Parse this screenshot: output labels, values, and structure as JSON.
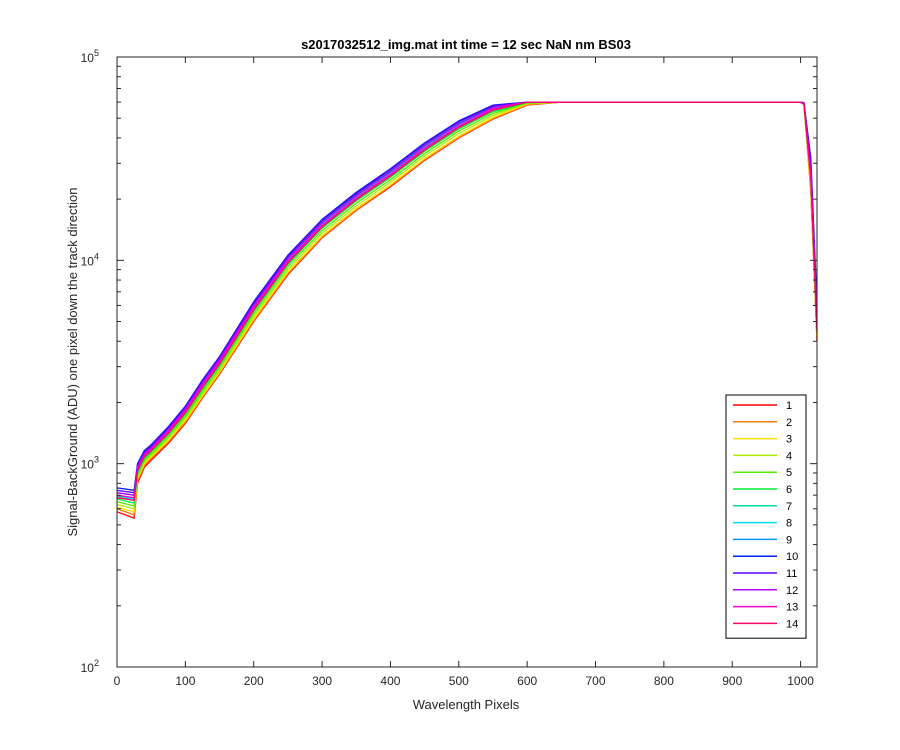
{
  "chart_data": {
    "type": "line",
    "title": "s2017032512_img.mat int time = 12 sec  NaN nm BS03",
    "xlabel": "Wavelength Pixels",
    "ylabel": "Signal-BackGround (ADU) one pixel down the track direction",
    "xlim": [
      0,
      1024
    ],
    "ylim": [
      100,
      100000
    ],
    "yscale": "log",
    "xticks": [
      "0",
      "100",
      "200",
      "300",
      "400",
      "500",
      "600",
      "700",
      "800",
      "900",
      "1000"
    ],
    "yticks": [
      {
        "value": 100,
        "base": "10",
        "exp": "2"
      },
      {
        "value": 1000,
        "base": "10",
        "exp": "3"
      },
      {
        "value": 10000,
        "base": "10",
        "exp": "4"
      },
      {
        "value": 100000,
        "base": "10",
        "exp": "5"
      }
    ],
    "legend_position": "bottom-right",
    "grid": false,
    "x": [
      0,
      25,
      30,
      40,
      50,
      75,
      100,
      125,
      150,
      200,
      250,
      300,
      350,
      400,
      450,
      500,
      550,
      600,
      650,
      700,
      800,
      900,
      1000,
      1005,
      1015,
      1024
    ],
    "series": [
      {
        "name": "1",
        "color": "#ff0000",
        "values": [
          580,
          540,
          800,
          960,
          1040,
          1260,
          1580,
          2100,
          2750,
          5000,
          8500,
          12900,
          17600,
          23000,
          31000,
          40000,
          49500,
          58000,
          60000,
          60000,
          60000,
          60000,
          60000,
          58000,
          22000,
          4000
        ]
      },
      {
        "name": "2",
        "color": "#ff7700",
        "values": [
          600,
          560,
          820,
          980,
          1060,
          1280,
          1600,
          2120,
          2780,
          5050,
          8600,
          13000,
          17700,
          23200,
          31200,
          40200,
          49700,
          58200,
          60000,
          60000,
          60000,
          60000,
          60000,
          58000,
          22000,
          4100
        ]
      },
      {
        "name": "3",
        "color": "#ffdd00",
        "values": [
          610,
          580,
          840,
          1000,
          1080,
          1300,
          1630,
          2150,
          2820,
          5150,
          8750,
          13200,
          18000,
          23500,
          31700,
          40800,
          50400,
          58700,
          60000,
          60000,
          60000,
          60000,
          60000,
          58000,
          23000,
          4200
        ]
      },
      {
        "name": "4",
        "color": "#aaee00",
        "values": [
          630,
          600,
          860,
          1020,
          1100,
          1330,
          1670,
          2200,
          2880,
          5300,
          9000,
          13600,
          18500,
          24200,
          32600,
          42000,
          51500,
          59200,
          60000,
          60000,
          60000,
          60000,
          60000,
          58500,
          24000,
          4300
        ]
      },
      {
        "name": "5",
        "color": "#55ee00",
        "values": [
          650,
          620,
          880,
          1040,
          1120,
          1360,
          1710,
          2260,
          2960,
          5450,
          9300,
          14000,
          19100,
          24900,
          33500,
          43200,
          52700,
          59500,
          60000,
          60000,
          60000,
          60000,
          60000,
          58500,
          25000,
          4500
        ]
      },
      {
        "name": "6",
        "color": "#00ee33",
        "values": [
          670,
          640,
          900,
          1060,
          1140,
          1390,
          1750,
          2320,
          3040,
          5600,
          9550,
          14400,
          19600,
          25600,
          34400,
          44300,
          53800,
          59700,
          60000,
          60000,
          60000,
          60000,
          60000,
          59000,
          26000,
          4600
        ]
      },
      {
        "name": "7",
        "color": "#00ddaa",
        "values": [
          690,
          660,
          920,
          1080,
          1160,
          1420,
          1790,
          2380,
          3110,
          5750,
          9800,
          14800,
          20100,
          26300,
          35300,
          45400,
          55000,
          60000,
          60000,
          60000,
          60000,
          60000,
          60000,
          59000,
          27000,
          4800
        ]
      },
      {
        "name": "8",
        "color": "#00ddff",
        "values": [
          700,
          670,
          940,
          1100,
          1180,
          1450,
          1830,
          2440,
          3190,
          5900,
          10000,
          15100,
          20600,
          26900,
          36100,
          46400,
          56000,
          60000,
          60000,
          60000,
          60000,
          60000,
          60000,
          59000,
          28000,
          5000
        ]
      },
      {
        "name": "9",
        "color": "#0099ff",
        "values": [
          720,
          700,
          960,
          1120,
          1200,
          1480,
          1870,
          2500,
          3260,
          6050,
          10300,
          15500,
          21100,
          27500,
          36900,
          47400,
          57000,
          60000,
          60000,
          60000,
          60000,
          60000,
          60000,
          59500,
          30000,
          5400
        ]
      },
      {
        "name": "10",
        "color": "#0022ee",
        "values": [
          760,
          740,
          1000,
          1160,
          1240,
          1520,
          1920,
          2580,
          3360,
          6250,
          10600,
          15900,
          21600,
          28200,
          37800,
          48500,
          58000,
          60000,
          60000,
          60000,
          60000,
          60000,
          60000,
          59500,
          32000,
          6000
        ]
      },
      {
        "name": "11",
        "color": "#6600ff",
        "values": [
          740,
          720,
          980,
          1140,
          1220,
          1500,
          1900,
          2550,
          3320,
          6150,
          10450,
          15700,
          21300,
          27900,
          37400,
          48000,
          57500,
          60000,
          60000,
          60000,
          60000,
          60000,
          60000,
          59500,
          30000,
          5600
        ]
      },
      {
        "name": "12",
        "color": "#bb00ff",
        "values": [
          720,
          700,
          960,
          1120,
          1200,
          1470,
          1860,
          2490,
          3250,
          6000,
          10200,
          15300,
          20800,
          27200,
          36500,
          46900,
          56500,
          60000,
          60000,
          60000,
          60000,
          60000,
          60000,
          59000,
          28000,
          5200
        ]
      },
      {
        "name": "13",
        "color": "#ff00cc",
        "values": [
          700,
          680,
          940,
          1100,
          1180,
          1440,
          1820,
          2430,
          3170,
          5850,
          9950,
          14900,
          20300,
          26500,
          35600,
          45800,
          55500,
          60000,
          60000,
          60000,
          60000,
          60000,
          60000,
          59000,
          26000,
          4800
        ]
      },
      {
        "name": "14",
        "color": "#ff0066",
        "values": [
          680,
          660,
          920,
          1080,
          1160,
          1410,
          1780,
          2370,
          3090,
          5700,
          9700,
          14600,
          19900,
          26000,
          34900,
          45000,
          54700,
          60000,
          60000,
          60000,
          60000,
          60000,
          60000,
          58500,
          25000,
          4400
        ]
      }
    ]
  }
}
